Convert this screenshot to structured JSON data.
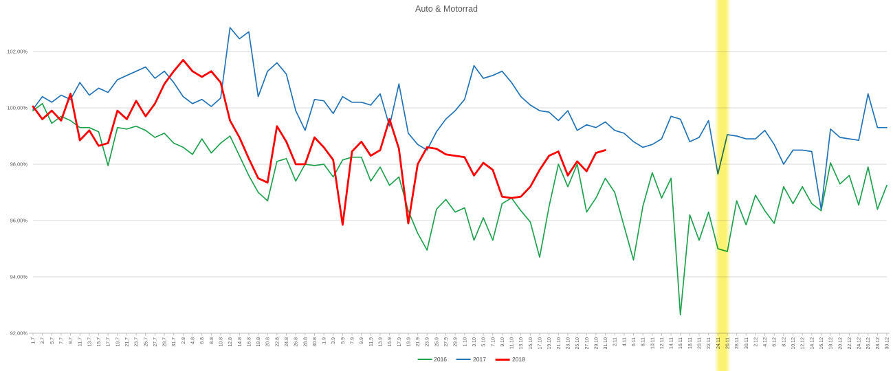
{
  "title": "Auto & Motorrad",
  "legend": {
    "items": [
      {
        "label": "2016",
        "color": "#1FA24E",
        "thick": false
      },
      {
        "label": "2017",
        "color": "#2273B6",
        "thick": false
      },
      {
        "label": "2018",
        "color": "#FF0000",
        "thick": true
      }
    ]
  },
  "highlight": {
    "label": "24.11",
    "color": "#FAF05A",
    "x_from_label": "22.11",
    "x_to_label": "26.11"
  },
  "axis_colors": {
    "gridline": "#D9D9D9",
    "axis": "#BFBFBF",
    "tick_text": "#595959"
  },
  "chart_data": {
    "type": "line",
    "title": "Auto & Motorrad",
    "xlabel": "",
    "ylabel": "",
    "grid": true,
    "legend_position": "bottom-center",
    "y_axis_ticks_percent": [
      102,
      100,
      98,
      96,
      94,
      92
    ],
    "y_tick_labels": [
      "102,00%",
      "100,00%",
      "98,00%",
      "96,00%",
      "94,00%",
      "92,00%"
    ],
    "ylim": [
      92,
      102
    ],
    "x_labels": [
      "1.7",
      "3.7",
      "5.7",
      "7.7",
      "9.7",
      "11.7",
      "13.7",
      "15.7",
      "17.7",
      "19.7",
      "21.7",
      "23.7",
      "25.7",
      "27.7",
      "29.7",
      "31.7",
      "2.8",
      "4.8",
      "6.8",
      "8.8",
      "10.8",
      "12.8",
      "14.8",
      "16.8",
      "18.8",
      "20.8",
      "22.8",
      "24.8",
      "26.8",
      "28.8",
      "30.8",
      "1.9",
      "3.9",
      "5.9",
      "7.9",
      "9.9",
      "11.9",
      "13.9",
      "15.9",
      "17.9",
      "19.9",
      "21.9",
      "23.9",
      "25.9",
      "27.9",
      "29.9",
      "1.10",
      "3.10",
      "5.10",
      "7.10",
      "9.10",
      "11.10",
      "13.10",
      "15.10",
      "17.10",
      "19.10",
      "21.10",
      "23.10",
      "25.10",
      "27.10",
      "29.10",
      "31.10",
      "2.11",
      "4.11",
      "6.11",
      "8.11",
      "10.11",
      "12.11",
      "14.11",
      "16.11",
      "18.11",
      "20.11",
      "22.11",
      "24.11",
      "26.11",
      "28.11",
      "30.11",
      "2.12",
      "4.12",
      "6.12",
      "8.12",
      "10.12",
      "12.12",
      "14.12",
      "16.12",
      "18.12",
      "20.12",
      "22.12",
      "24.12",
      "26.12",
      "28.12",
      "30.12"
    ],
    "series": [
      {
        "name": "2016",
        "color": "#1FA24E",
        "width": 1.7,
        "values": [
          99.9,
          100.15,
          99.45,
          99.7,
          99.55,
          99.3,
          99.3,
          99.15,
          97.95,
          99.3,
          99.25,
          99.35,
          99.2,
          98.95,
          99.1,
          98.75,
          98.6,
          98.35,
          98.9,
          98.4,
          98.75,
          99.0,
          98.3,
          97.6,
          97.0,
          96.7,
          98.1,
          98.2,
          97.4,
          98.0,
          97.95,
          98.0,
          97.55,
          98.15,
          98.25,
          98.25,
          97.4,
          97.9,
          97.25,
          97.55,
          96.35,
          95.55,
          94.95,
          96.4,
          96.75,
          96.3,
          96.45,
          95.3,
          96.1,
          95.3,
          96.6,
          96.8,
          96.35,
          95.95,
          94.7,
          96.5,
          98.0,
          97.2,
          98.0,
          96.3,
          96.8,
          97.5,
          97.0,
          95.8,
          94.6,
          96.5,
          97.7,
          96.8,
          97.5,
          92.65,
          96.2,
          95.3,
          96.3,
          95.0,
          94.9,
          96.7,
          95.85,
          96.9,
          96.35,
          95.9,
          97.2,
          96.6,
          97.2,
          96.6,
          96.35,
          98.05,
          97.3,
          97.6,
          96.55,
          97.9,
          96.4,
          97.25
        ]
      },
      {
        "name": "2017",
        "color": "#2273B6",
        "width": 1.7,
        "values": [
          99.95,
          100.4,
          100.2,
          100.45,
          100.3,
          100.9,
          100.45,
          100.7,
          100.55,
          101.0,
          101.15,
          101.3,
          101.45,
          101.05,
          101.3,
          100.9,
          100.4,
          100.15,
          100.3,
          100.05,
          100.35,
          102.85,
          102.45,
          102.7,
          100.4,
          101.3,
          101.6,
          101.2,
          99.9,
          99.2,
          100.3,
          100.25,
          99.8,
          100.4,
          100.2,
          100.2,
          100.1,
          100.5,
          99.35,
          100.85,
          99.1,
          98.7,
          98.5,
          99.15,
          99.6,
          99.9,
          100.3,
          101.5,
          101.05,
          101.15,
          101.3,
          100.9,
          100.4,
          100.1,
          99.9,
          99.85,
          99.55,
          99.9,
          99.2,
          99.4,
          99.3,
          99.5,
          99.2,
          99.1,
          98.8,
          98.6,
          98.7,
          98.9,
          99.7,
          99.6,
          98.8,
          98.95,
          99.55,
          97.65,
          99.05,
          99.0,
          98.9,
          98.9,
          99.2,
          98.7,
          98.0,
          98.5,
          98.5,
          98.45,
          96.4,
          99.25,
          98.95,
          98.9,
          98.85,
          100.5,
          99.3,
          99.3
        ]
      },
      {
        "name": "2018",
        "color": "#FF0000",
        "width": 2.8,
        "values": [
          100.05,
          99.6,
          99.9,
          99.55,
          100.5,
          98.85,
          99.2,
          98.65,
          98.75,
          99.9,
          99.6,
          100.25,
          99.7,
          100.15,
          100.85,
          101.3,
          101.7,
          101.3,
          101.1,
          101.3,
          100.9,
          99.55,
          98.95,
          98.2,
          97.5,
          97.35,
          99.35,
          98.8,
          98.0,
          98.0,
          98.95,
          98.6,
          98.15,
          95.85,
          98.45,
          98.8,
          98.3,
          98.5,
          99.6,
          98.55,
          95.9,
          98.0,
          98.6,
          98.55,
          98.35,
          98.3,
          98.25,
          97.6,
          98.05,
          97.8,
          96.85,
          96.8,
          96.85,
          97.2,
          97.8,
          98.3,
          98.45,
          97.6,
          98.1,
          97.75,
          98.4,
          98.5
        ]
      }
    ]
  }
}
